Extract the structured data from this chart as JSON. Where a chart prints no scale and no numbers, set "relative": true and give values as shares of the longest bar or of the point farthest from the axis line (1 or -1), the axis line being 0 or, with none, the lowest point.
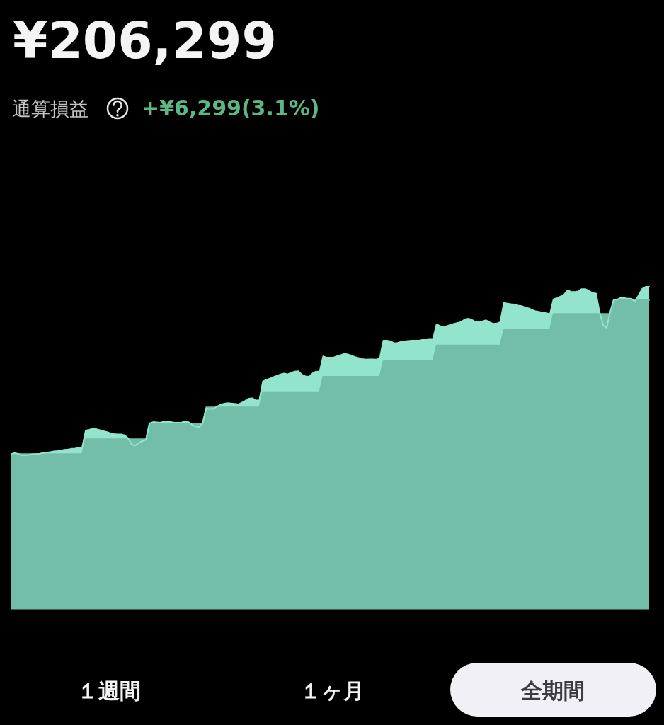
{
  "chart_data": {
    "type": "area",
    "title": "¥206,299",
    "subtitle": "通算損益",
    "annotations": [
      "+¥6,299(3.1%)",
      "１週間",
      "１ヶ月",
      "全期間"
    ],
    "relative": true,
    "categories": [
      null,
      null,
      null,
      null,
      null,
      null,
      null,
      null,
      null,
      null,
      null,
      null,
      null,
      null,
      null,
      null,
      null,
      null,
      null,
      null,
      null,
      null,
      null,
      null,
      null,
      null,
      null,
      null,
      null,
      null,
      null,
      null,
      null,
      null,
      null,
      null,
      null,
      null,
      null,
      null,
      null,
      null,
      null,
      null,
      null,
      null,
      null,
      null,
      null,
      null,
      null,
      null,
      null,
      null,
      null,
      null,
      null,
      null,
      null,
      null,
      null,
      null,
      null,
      null,
      null,
      null,
      null,
      null,
      null,
      null,
      null,
      null,
      null,
      null,
      null,
      null,
      null,
      null,
      null,
      null,
      null,
      null,
      null,
      null,
      null,
      null,
      null,
      null,
      null,
      null,
      null,
      null,
      null,
      null,
      null,
      null,
      null,
      null,
      null,
      null,
      null,
      null,
      null,
      null,
      null,
      null,
      null,
      null,
      null,
      null,
      null,
      null,
      null,
      null,
      null,
      null,
      null,
      null,
      null,
      null,
      null,
      null,
      null,
      null,
      null,
      null,
      null,
      null,
      null,
      null,
      null,
      null,
      null,
      null,
      null,
      null,
      null,
      null,
      null,
      null,
      null,
      null,
      null,
      null,
      null,
      null,
      null,
      null,
      null,
      null,
      null,
      null,
      null,
      null,
      null,
      null,
      null,
      null,
      null,
      null,
      null,
      null,
      null,
      null,
      null,
      null,
      null,
      null,
      null,
      null,
      null,
      null,
      null,
      null,
      null,
      null,
      null,
      null,
      null,
      null,
      null
    ],
    "series": [
      {
        "color": "#93e4cd",
        "values": [
          0.481,
          0.484,
          0.481,
          0.477,
          0.477,
          0.478,
          0.48,
          0.481,
          0.482,
          0.484,
          0.485,
          0.487,
          0.489,
          0.49,
          0.492,
          0.494,
          0.495,
          0.497,
          0.498,
          0.5,
          0.501,
          0.554,
          0.556,
          0.559,
          0.558,
          0.555,
          0.552,
          0.549,
          0.545,
          0.543,
          0.542,
          0.542,
          0.539,
          0.529,
          0.51,
          0.507,
          0.515,
          0.521,
          0.525,
          0.576,
          0.58,
          0.579,
          0.578,
          0.581,
          0.582,
          0.58,
          0.578,
          0.578,
          0.578,
          0.583,
          0.58,
          0.571,
          0.566,
          0.565,
          0.576,
          0.622,
          0.621,
          0.621,
          0.628,
          0.634,
          0.637,
          0.639,
          0.638,
          0.637,
          0.635,
          0.64,
          0.646,
          0.653,
          0.654,
          0.647,
          0.648,
          0.706,
          0.711,
          0.715,
          0.72,
          0.724,
          0.728,
          0.731,
          0.728,
          0.733,
          0.737,
          0.738,
          0.727,
          0.722,
          0.721,
          0.731,
          0.737,
          0.736,
          0.784,
          0.78,
          0.78,
          0.781,
          0.785,
          0.788,
          0.792,
          0.79,
          0.786,
          0.782,
          0.779,
          0.776,
          0.774,
          0.775,
          0.775,
          0.774,
          0.778,
          0.833,
          0.833,
          0.831,
          0.825,
          0.826,
          0.829,
          0.831,
          0.832,
          0.833,
          0.833,
          0.833,
          0.835,
          0.835,
          0.836,
          0.837,
          0.883,
          0.878,
          0.875,
          0.878,
          0.882,
          0.885,
          0.888,
          0.891,
          0.899,
          0.901,
          0.897,
          0.891,
          0.892,
          0.893,
          0.896,
          0.89,
          0.885,
          0.886,
          0.89,
          0.95,
          0.948,
          0.946,
          0.945,
          0.942,
          0.94,
          0.936,
          0.933,
          0.928,
          0.924,
          0.922,
          0.92,
          0.918,
          0.915,
          0.961,
          0.965,
          0.97,
          0.976,
          0.989,
          0.984,
          0.984,
          0.986,
          0.993,
          0.993,
          0.987,
          0.981,
          0.979,
          0.921,
          0.882,
          0.872,
          0.922,
          0.96,
          0.96,
          0.966,
          0.965,
          0.963,
          0.963,
          0.954,
          0.973,
          0.993,
          1.0,
          1.0
        ]
      },
      {
        "color": "#72bea8",
        "values": [
          0.481,
          0.481,
          0.481,
          0.481,
          0.481,
          0.481,
          0.481,
          0.481,
          0.481,
          0.481,
          0.481,
          0.481,
          0.481,
          0.481,
          0.481,
          0.481,
          0.481,
          0.481,
          0.481,
          0.481,
          0.481,
          0.527,
          0.527,
          0.527,
          0.527,
          0.527,
          0.527,
          0.527,
          0.527,
          0.527,
          0.527,
          0.527,
          0.527,
          0.527,
          0.527,
          0.527,
          0.527,
          0.527,
          0.527,
          0.576,
          0.576,
          0.576,
          0.576,
          0.576,
          0.576,
          0.576,
          0.576,
          0.576,
          0.576,
          0.576,
          0.576,
          0.576,
          0.576,
          0.576,
          0.576,
          0.626,
          0.626,
          0.626,
          0.626,
          0.626,
          0.626,
          0.626,
          0.626,
          0.626,
          0.626,
          0.626,
          0.626,
          0.626,
          0.626,
          0.626,
          0.626,
          0.673,
          0.673,
          0.673,
          0.673,
          0.673,
          0.673,
          0.673,
          0.673,
          0.673,
          0.673,
          0.673,
          0.673,
          0.673,
          0.673,
          0.673,
          0.673,
          0.673,
          0.721,
          0.721,
          0.721,
          0.721,
          0.721,
          0.721,
          0.721,
          0.721,
          0.721,
          0.721,
          0.721,
          0.721,
          0.721,
          0.721,
          0.721,
          0.721,
          0.721,
          0.769,
          0.769,
          0.769,
          0.769,
          0.769,
          0.769,
          0.769,
          0.769,
          0.769,
          0.769,
          0.769,
          0.769,
          0.769,
          0.769,
          0.769,
          0.818,
          0.818,
          0.818,
          0.818,
          0.818,
          0.818,
          0.818,
          0.818,
          0.818,
          0.818,
          0.818,
          0.818,
          0.818,
          0.818,
          0.818,
          0.818,
          0.818,
          0.818,
          0.818,
          0.866,
          0.866,
          0.866,
          0.866,
          0.866,
          0.866,
          0.866,
          0.866,
          0.866,
          0.866,
          0.866,
          0.866,
          0.866,
          0.866,
          0.916,
          0.916,
          0.916,
          0.916,
          0.916,
          0.916,
          0.916,
          0.916,
          0.916,
          0.916,
          0.916,
          0.916,
          0.916,
          0.916,
          0.916,
          0.916,
          0.916,
          0.958,
          0.958,
          0.958,
          0.958,
          0.958,
          0.958,
          0.958,
          0.958,
          0.958,
          0.958,
          0.958
        ]
      }
    ]
  }
}
